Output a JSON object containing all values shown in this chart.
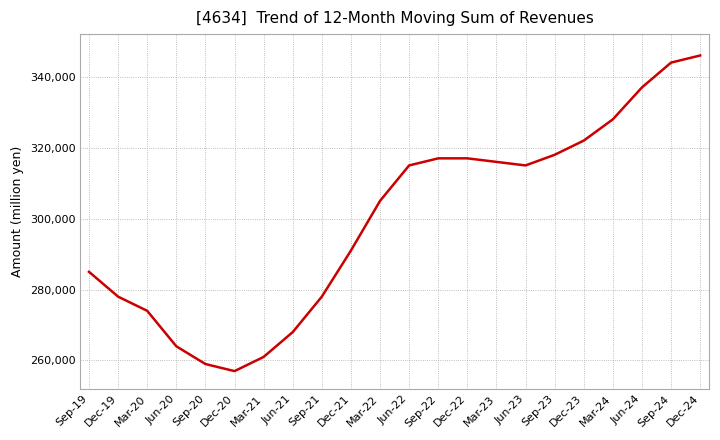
{
  "title": "[4634]  Trend of 12-Month Moving Sum of Revenues",
  "ylabel": "Amount (million yen)",
  "background_color": "#ffffff",
  "plot_bg_color": "#ffffff",
  "grid_color": "#aaaaaa",
  "line_color": "#cc0000",
  "x_labels": [
    "Sep-19",
    "Dec-19",
    "Mar-20",
    "Jun-20",
    "Sep-20",
    "Dec-20",
    "Mar-21",
    "Jun-21",
    "Sep-21",
    "Dec-21",
    "Mar-22",
    "Jun-22",
    "Sep-22",
    "Dec-22",
    "Mar-23",
    "Jun-23",
    "Sep-23",
    "Dec-23",
    "Mar-24",
    "Jun-24",
    "Sep-24",
    "Dec-24"
  ],
  "values": [
    285000,
    278000,
    274000,
    264000,
    259000,
    257000,
    261000,
    268000,
    278000,
    291000,
    305000,
    315000,
    317000,
    317000,
    316000,
    315000,
    318000,
    322000,
    328000,
    337000,
    344000,
    346000
  ],
  "ylim": [
    252000,
    352000
  ],
  "yticks": [
    260000,
    280000,
    300000,
    320000,
    340000
  ],
  "title_fontsize": 11,
  "axis_fontsize": 9,
  "tick_fontsize": 8
}
